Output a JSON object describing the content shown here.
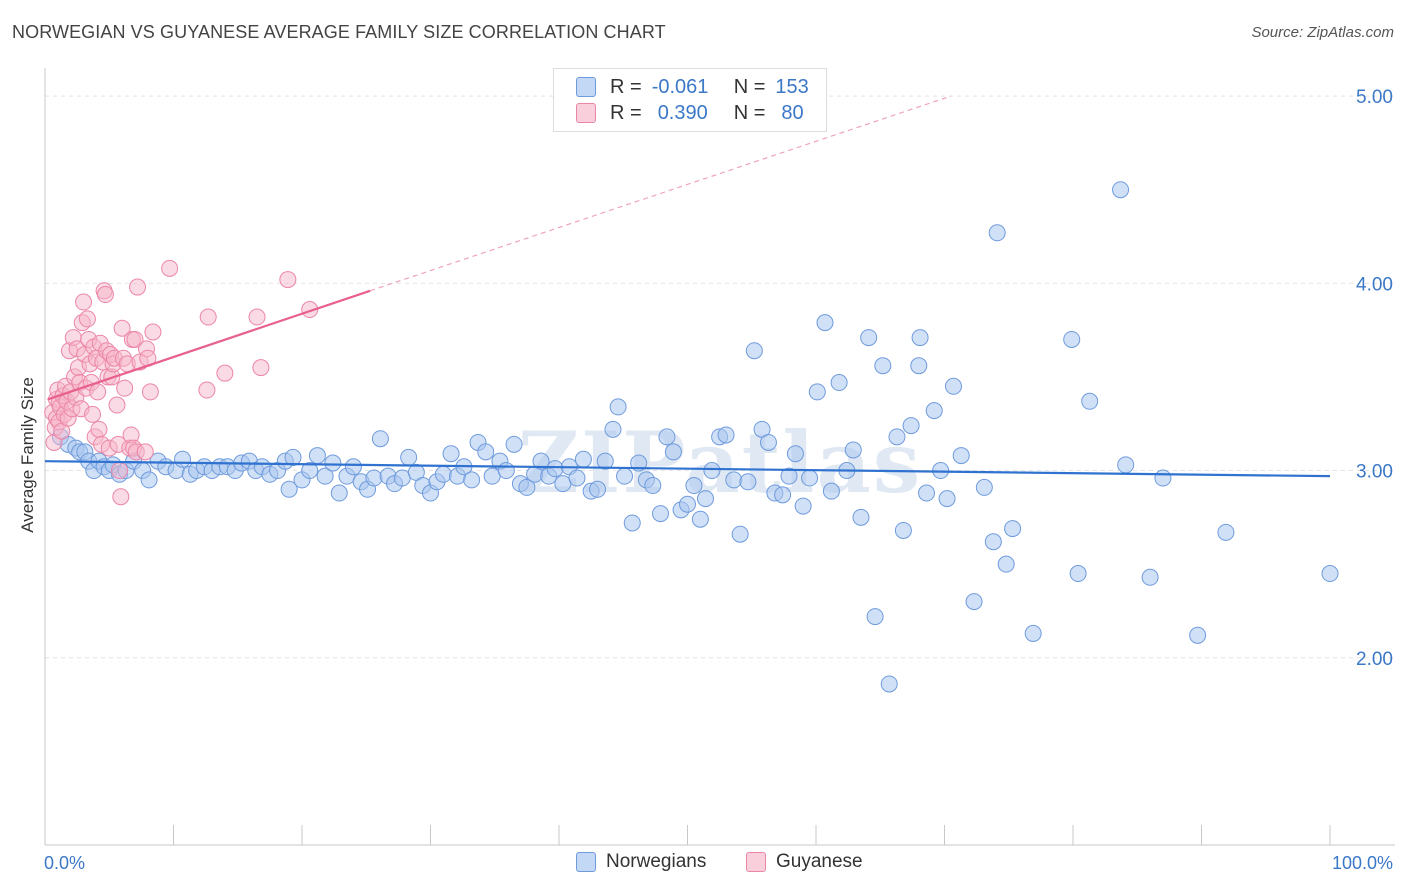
{
  "title": "NORWEGIAN VS GUYANESE AVERAGE FAMILY SIZE CORRELATION CHART",
  "source": "Source: ZipAtlas.com",
  "watermark": "ZIPatlas",
  "legend": {
    "rows": [
      {
        "r_label": "R =",
        "r_value": "-0.061",
        "n_label": "N =",
        "n_value": "153"
      },
      {
        "r_label": "R =",
        "r_value": "0.390",
        "n_label": "N =",
        "n_value": "80"
      }
    ]
  },
  "bottom_legend": [
    "Norwegians",
    "Guyanese"
  ],
  "colors": {
    "blue_fill": "#a9c6ef",
    "blue_stroke": "#6f9bdd",
    "blue_line": "#2f72d0",
    "pink_fill": "#f6b6ca",
    "pink_stroke": "#ec86a7",
    "pink_line": "#e8608e",
    "axis_text": "#3b78c8",
    "grid": "#e4e4e4"
  },
  "chart_data": {
    "type": "scatter",
    "title": "NORWEGIAN VS GUYANESE AVERAGE FAMILY SIZE CORRELATION CHART",
    "xlabel": "",
    "ylabel": "Average Family Size",
    "xlim": [
      0,
      100
    ],
    "ylim": [
      1.0,
      5.15
    ],
    "x_tick_labels": [
      "0.0%",
      "100.0%"
    ],
    "y_ticks": [
      2.0,
      3.0,
      4.0,
      5.0
    ],
    "y_tick_labels": [
      "2.00",
      "3.00",
      "4.00",
      "5.00"
    ],
    "grid": "horizontal dashed",
    "series": [
      {
        "name": "Norwegians",
        "color": "#6f9bdd",
        "trend": {
          "x": [
            0,
            100
          ],
          "y": [
            3.05,
            2.97
          ]
        },
        "points": [
          [
            1.2,
            3.18
          ],
          [
            1.8,
            3.14
          ],
          [
            2.4,
            3.12
          ],
          [
            2.7,
            3.1
          ],
          [
            3.1,
            3.1
          ],
          [
            3.4,
            3.05
          ],
          [
            3.8,
            3.0
          ],
          [
            4.2,
            3.05
          ],
          [
            4.6,
            3.02
          ],
          [
            5.0,
            3.0
          ],
          [
            5.3,
            3.03
          ],
          [
            5.8,
            2.98
          ],
          [
            6.3,
            3.0
          ],
          [
            6.9,
            3.05
          ],
          [
            7.6,
            3.0
          ],
          [
            8.1,
            2.95
          ],
          [
            8.8,
            3.05
          ],
          [
            9.4,
            3.02
          ],
          [
            10.2,
            3.0
          ],
          [
            10.7,
            3.06
          ],
          [
            11.3,
            2.98
          ],
          [
            11.8,
            3.0
          ],
          [
            12.4,
            3.02
          ],
          [
            13.0,
            3.0
          ],
          [
            13.6,
            3.02
          ],
          [
            14.2,
            3.02
          ],
          [
            14.8,
            3.0
          ],
          [
            15.3,
            3.04
          ],
          [
            15.9,
            3.05
          ],
          [
            16.4,
            3.0
          ],
          [
            16.9,
            3.02
          ],
          [
            17.5,
            2.98
          ],
          [
            18.1,
            3.0
          ],
          [
            18.7,
            3.05
          ],
          [
            19.3,
            3.07
          ],
          [
            19.0,
            2.9
          ],
          [
            20.0,
            2.95
          ],
          [
            20.6,
            3.0
          ],
          [
            21.2,
            3.08
          ],
          [
            21.8,
            2.97
          ],
          [
            22.4,
            3.04
          ],
          [
            22.9,
            2.88
          ],
          [
            23.5,
            2.97
          ],
          [
            24.0,
            3.02
          ],
          [
            24.6,
            2.94
          ],
          [
            25.1,
            2.9
          ],
          [
            25.6,
            2.96
          ],
          [
            26.1,
            3.17
          ],
          [
            26.7,
            2.97
          ],
          [
            27.2,
            2.93
          ],
          [
            27.8,
            2.96
          ],
          [
            28.3,
            3.07
          ],
          [
            28.9,
            2.99
          ],
          [
            29.4,
            2.92
          ],
          [
            30.0,
            2.88
          ],
          [
            30.5,
            2.94
          ],
          [
            31.0,
            2.98
          ],
          [
            31.6,
            3.09
          ],
          [
            32.1,
            2.97
          ],
          [
            32.6,
            3.02
          ],
          [
            33.2,
            2.95
          ],
          [
            33.7,
            3.15
          ],
          [
            34.3,
            3.1
          ],
          [
            34.8,
            2.97
          ],
          [
            35.4,
            3.05
          ],
          [
            35.9,
            3.0
          ],
          [
            36.5,
            3.14
          ],
          [
            37.0,
            2.93
          ],
          [
            37.5,
            2.91
          ],
          [
            38.1,
            2.98
          ],
          [
            38.6,
            3.05
          ],
          [
            39.2,
            2.97
          ],
          [
            39.7,
            3.01
          ],
          [
            40.3,
            2.93
          ],
          [
            40.8,
            3.02
          ],
          [
            41.4,
            2.96
          ],
          [
            41.9,
            3.06
          ],
          [
            42.5,
            2.89
          ],
          [
            43.0,
            2.9
          ],
          [
            43.6,
            3.05
          ],
          [
            44.2,
            3.22
          ],
          [
            44.6,
            3.34
          ],
          [
            45.1,
            2.97
          ],
          [
            45.7,
            2.72
          ],
          [
            46.2,
            3.04
          ],
          [
            46.8,
            2.95
          ],
          [
            47.3,
            2.92
          ],
          [
            47.9,
            2.77
          ],
          [
            48.4,
            3.18
          ],
          [
            48.9,
            3.1
          ],
          [
            49.5,
            2.79
          ],
          [
            50.0,
            2.82
          ],
          [
            50.5,
            2.92
          ],
          [
            51.0,
            2.74
          ],
          [
            51.4,
            2.85
          ],
          [
            51.9,
            3.0
          ],
          [
            52.5,
            3.18
          ],
          [
            53.0,
            3.19
          ],
          [
            53.6,
            2.95
          ],
          [
            54.1,
            2.66
          ],
          [
            54.7,
            2.94
          ],
          [
            55.2,
            3.64
          ],
          [
            55.8,
            3.22
          ],
          [
            56.3,
            3.15
          ],
          [
            56.8,
            2.88
          ],
          [
            57.4,
            2.87
          ],
          [
            57.9,
            2.97
          ],
          [
            58.4,
            3.09
          ],
          [
            59.0,
            2.81
          ],
          [
            59.5,
            2.96
          ],
          [
            60.1,
            3.42
          ],
          [
            60.7,
            3.79
          ],
          [
            61.2,
            2.89
          ],
          [
            61.8,
            3.47
          ],
          [
            62.4,
            3.0
          ],
          [
            62.9,
            3.11
          ],
          [
            63.5,
            2.75
          ],
          [
            64.1,
            3.71
          ],
          [
            64.6,
            2.22
          ],
          [
            65.2,
            3.56
          ],
          [
            65.7,
            1.86
          ],
          [
            66.3,
            3.18
          ],
          [
            66.8,
            2.68
          ],
          [
            67.4,
            3.24
          ],
          [
            68.0,
            3.56
          ],
          [
            68.1,
            3.71
          ],
          [
            68.6,
            2.88
          ],
          [
            69.2,
            3.32
          ],
          [
            69.7,
            3.0
          ],
          [
            70.2,
            2.85
          ],
          [
            70.7,
            3.45
          ],
          [
            71.3,
            3.08
          ],
          [
            72.3,
            2.3
          ],
          [
            73.1,
            2.91
          ],
          [
            73.8,
            2.62
          ],
          [
            74.1,
            4.27
          ],
          [
            74.8,
            2.5
          ],
          [
            75.3,
            2.69
          ],
          [
            76.9,
            2.13
          ],
          [
            79.9,
            3.7
          ],
          [
            80.4,
            2.45
          ],
          [
            81.3,
            3.37
          ],
          [
            83.7,
            4.5
          ],
          [
            84.1,
            3.03
          ],
          [
            86.0,
            2.43
          ],
          [
            87.0,
            2.96
          ],
          [
            89.7,
            2.12
          ],
          [
            91.9,
            2.67
          ],
          [
            100.0,
            2.45
          ]
        ]
      },
      {
        "name": "Guyanese",
        "color": "#ec86a7",
        "trend": {
          "x": [
            0.2,
            25.3
          ],
          "y": [
            3.38,
            3.96
          ]
        },
        "trend_extension": {
          "x": [
            25.3,
            70.5
          ],
          "y": [
            3.96,
            5.0
          ]
        },
        "points": [
          [
            0.6,
            3.31
          ],
          [
            0.7,
            3.15
          ],
          [
            0.8,
            3.23
          ],
          [
            0.9,
            3.38
          ],
          [
            0.9,
            3.28
          ],
          [
            1.0,
            3.43
          ],
          [
            1.1,
            3.36
          ],
          [
            1.1,
            3.26
          ],
          [
            1.2,
            3.34
          ],
          [
            1.3,
            3.21
          ],
          [
            1.4,
            3.4
          ],
          [
            1.5,
            3.3
          ],
          [
            1.6,
            3.45
          ],
          [
            1.7,
            3.37
          ],
          [
            1.8,
            3.28
          ],
          [
            1.9,
            3.64
          ],
          [
            2.0,
            3.42
          ],
          [
            2.1,
            3.33
          ],
          [
            2.2,
            3.71
          ],
          [
            2.3,
            3.5
          ],
          [
            2.4,
            3.39
          ],
          [
            2.5,
            3.65
          ],
          [
            2.6,
            3.55
          ],
          [
            2.7,
            3.47
          ],
          [
            2.8,
            3.33
          ],
          [
            2.9,
            3.79
          ],
          [
            3.0,
            3.9
          ],
          [
            3.1,
            3.62
          ],
          [
            3.2,
            3.44
          ],
          [
            3.3,
            3.81
          ],
          [
            3.4,
            3.7
          ],
          [
            3.5,
            3.57
          ],
          [
            3.6,
            3.47
          ],
          [
            3.7,
            3.3
          ],
          [
            3.8,
            3.66
          ],
          [
            3.9,
            3.18
          ],
          [
            4.0,
            3.6
          ],
          [
            4.1,
            3.42
          ],
          [
            4.2,
            3.22
          ],
          [
            4.3,
            3.68
          ],
          [
            4.4,
            3.14
          ],
          [
            4.5,
            3.58
          ],
          [
            4.6,
            3.96
          ],
          [
            4.7,
            3.94
          ],
          [
            4.8,
            3.64
          ],
          [
            4.9,
            3.5
          ],
          [
            5.0,
            3.12
          ],
          [
            5.1,
            3.62
          ],
          [
            5.2,
            3.5
          ],
          [
            5.3,
            3.57
          ],
          [
            5.4,
            3.6
          ],
          [
            5.6,
            3.35
          ],
          [
            5.7,
            3.14
          ],
          [
            5.8,
            3.0
          ],
          [
            5.9,
            2.86
          ],
          [
            6.0,
            3.76
          ],
          [
            6.1,
            3.6
          ],
          [
            6.2,
            3.44
          ],
          [
            6.4,
            3.57
          ],
          [
            6.6,
            3.12
          ],
          [
            6.7,
            3.19
          ],
          [
            6.8,
            3.7
          ],
          [
            6.9,
            3.12
          ],
          [
            7.0,
            3.7
          ],
          [
            7.1,
            3.1
          ],
          [
            7.2,
            3.98
          ],
          [
            7.4,
            3.58
          ],
          [
            7.8,
            3.1
          ],
          [
            7.9,
            3.65
          ],
          [
            8.0,
            3.6
          ],
          [
            8.2,
            3.42
          ],
          [
            8.4,
            3.74
          ],
          [
            9.7,
            4.08
          ],
          [
            12.6,
            3.43
          ],
          [
            12.7,
            3.82
          ],
          [
            14.0,
            3.52
          ],
          [
            16.5,
            3.82
          ],
          [
            16.8,
            3.55
          ],
          [
            18.9,
            4.02
          ],
          [
            20.6,
            3.86
          ]
        ]
      }
    ]
  }
}
